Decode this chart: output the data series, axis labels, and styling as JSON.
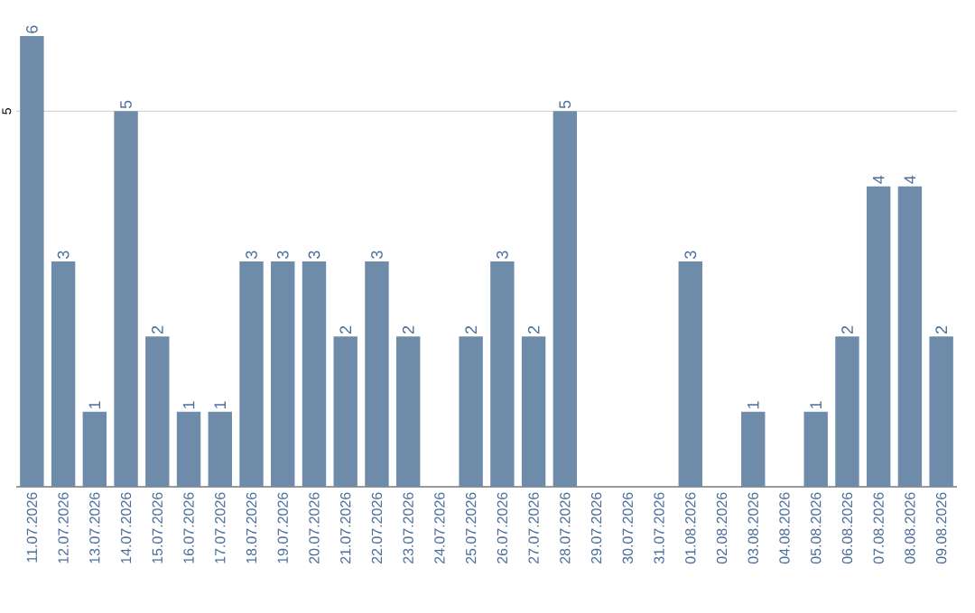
{
  "chart_data": {
    "type": "bar",
    "categories": [
      "11.07.2026",
      "12.07.2026",
      "13.07.2026",
      "14.07.2026",
      "15.07.2026",
      "16.07.2026",
      "17.07.2026",
      "18.07.2026",
      "19.07.2026",
      "20.07.2026",
      "21.07.2026",
      "22.07.2026",
      "23.07.2026",
      "24.07.2026",
      "25.07.2026",
      "26.07.2026",
      "27.07.2026",
      "28.07.2026",
      "29.07.2026",
      "30.07.2026",
      "31.07.2026",
      "01.08.2026",
      "02.08.2026",
      "03.08.2026",
      "04.08.2026",
      "05.08.2026",
      "06.08.2026",
      "07.08.2026",
      "08.08.2026",
      "09.08.2026"
    ],
    "values": [
      6,
      3,
      1,
      5,
      2,
      1,
      1,
      3,
      3,
      3,
      2,
      3,
      2,
      0,
      2,
      3,
      2,
      5,
      0,
      0,
      0,
      3,
      0,
      1,
      0,
      1,
      2,
      4,
      4,
      2
    ],
    "value_labels": [
      "6",
      "3",
      "1",
      "5",
      "2",
      "1",
      "1",
      "3",
      "3",
      "3",
      "2",
      "3",
      "2",
      null,
      "2",
      "3",
      "2",
      "5",
      null,
      null,
      null,
      "3",
      null,
      "1",
      null,
      "1",
      "2",
      "4",
      "4",
      "2"
    ],
    "color": "#6e8caa",
    "ylim": [
      0,
      6
    ],
    "yticks": [
      5
    ],
    "grid": "y"
  }
}
